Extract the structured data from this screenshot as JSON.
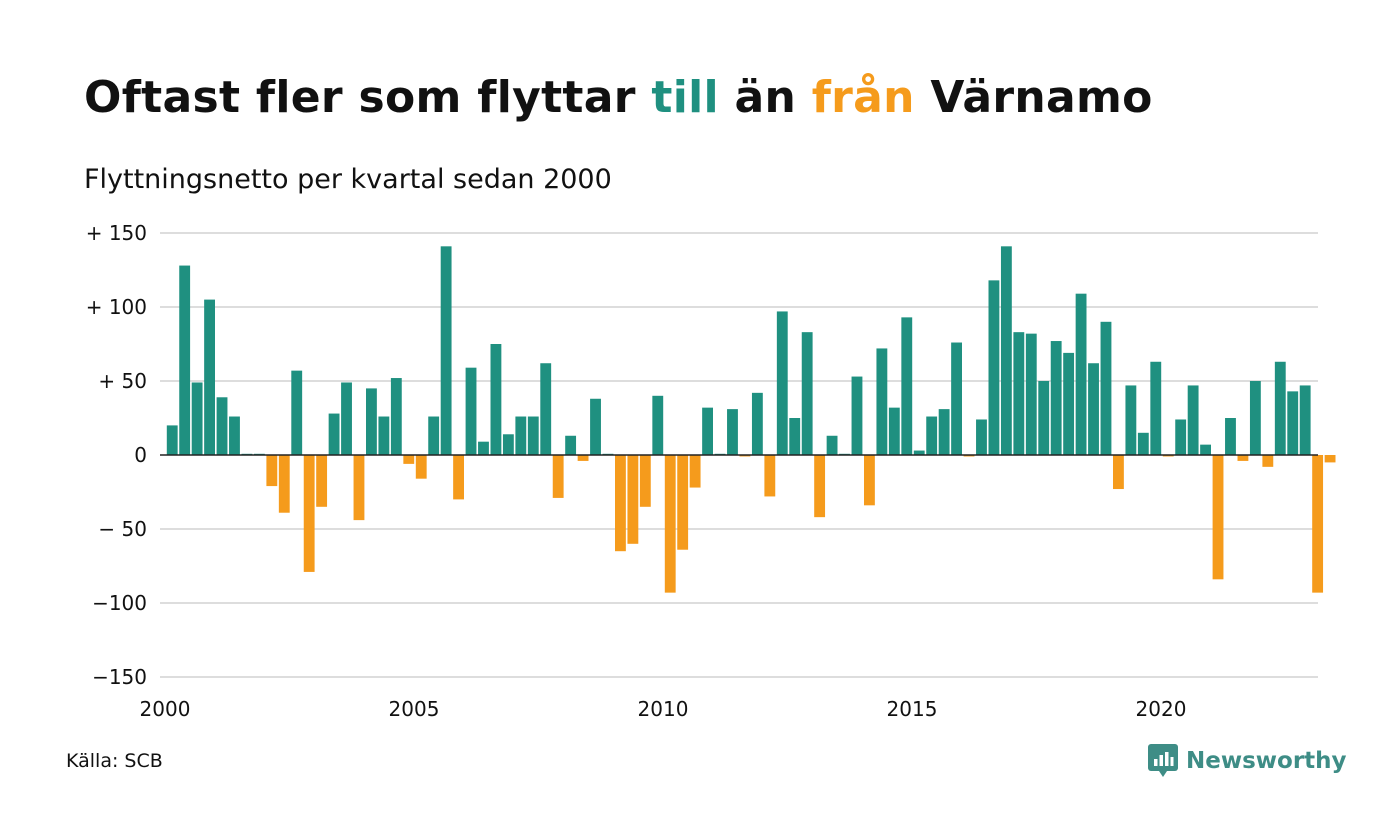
{
  "title": {
    "part1": "Oftast fler som flyttar ",
    "word_till": "till",
    "part2": " än ",
    "word_fran": "från",
    "part3": " Värnamo"
  },
  "subtitle": "Flyttningsnetto per kvartal sedan 2000",
  "source": "Källa: SCB",
  "logo": {
    "text": "Newsworthy",
    "icon": "newsworthy-chart-bubble-icon"
  },
  "colors": {
    "positive": "#1f9080",
    "negative": "#f59b1c",
    "logo": "#3e8d86",
    "grid": "#dddddd",
    "zero_line": "#222222"
  },
  "chart_data": {
    "type": "bar",
    "title": "Oftast fler som flyttar till än från Värnamo",
    "subtitle": "Flyttningsnetto per kvartal sedan 2000",
    "x_start": "2000 Q1",
    "x_ticks": [
      "2000",
      "2005",
      "2010",
      "2015",
      "2020"
    ],
    "y_ticks": [
      {
        "value": 150,
        "label": "+ 150"
      },
      {
        "value": 100,
        "label": "+ 100"
      },
      {
        "value": 50,
        "label": "+  50"
      },
      {
        "value": 0,
        "label": "0"
      },
      {
        "value": -50,
        "label": "− 50"
      },
      {
        "value": -100,
        "label": "−100"
      },
      {
        "value": -150,
        "label": "−150"
      }
    ],
    "ylim": [
      -150,
      150
    ],
    "grid": true,
    "values": [
      20,
      128,
      49,
      105,
      39,
      26,
      0,
      0,
      -21,
      -39,
      57,
      -79,
      -35,
      28,
      49,
      -44,
      45,
      26,
      52,
      -6,
      -16,
      26,
      141,
      -30,
      59,
      9,
      75,
      14,
      26,
      26,
      62,
      -29,
      13,
      -4,
      38,
      0,
      -65,
      -60,
      -35,
      40,
      -93,
      -64,
      -22,
      32,
      0,
      31,
      -1,
      42,
      -28,
      97,
      25,
      83,
      -42,
      13,
      0,
      53,
      -34,
      72,
      32,
      93,
      3,
      26,
      31,
      76,
      -1,
      24,
      118,
      141,
      83,
      82,
      50,
      77,
      69,
      109,
      62,
      90,
      -23,
      47,
      15,
      63,
      -1,
      24,
      47,
      7,
      -84,
      25,
      -4,
      50,
      -8,
      63,
      43,
      47,
      -93,
      -5
    ]
  }
}
